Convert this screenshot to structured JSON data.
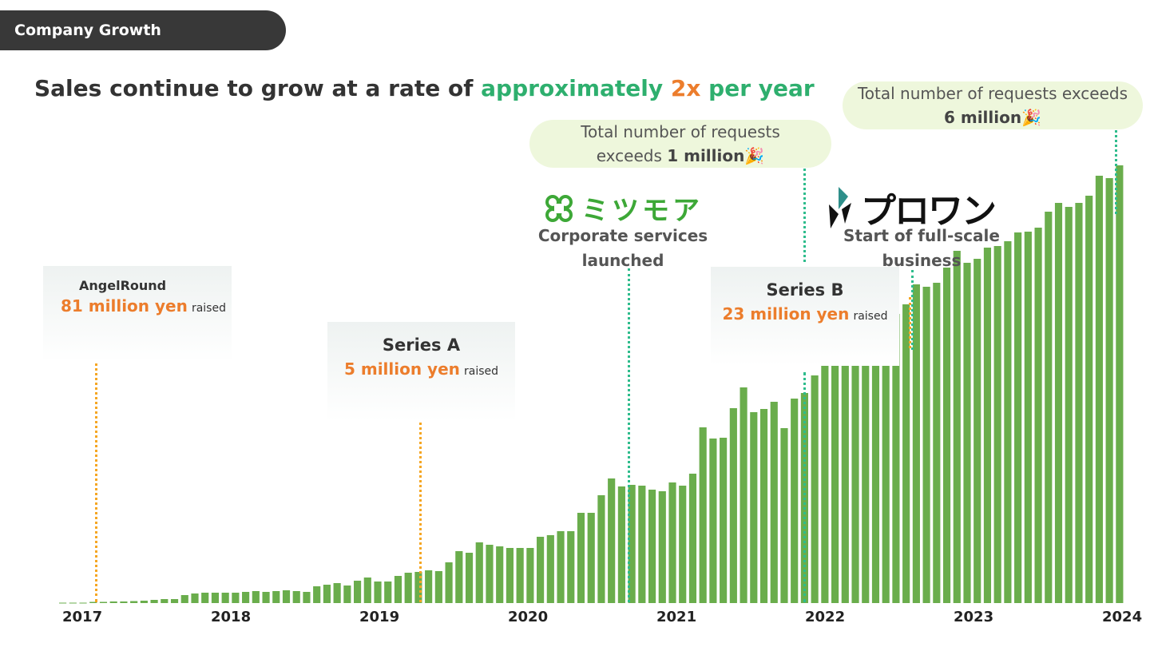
{
  "header": {
    "tab_label": "Company Growth"
  },
  "headline": {
    "part1": "Sales continue to grow at a rate of ",
    "part2": "approximately ",
    "part3": "2x",
    "part4": " per year"
  },
  "colors": {
    "bar": "#6aad4c",
    "accent_orange": "#ec7d2c",
    "accent_green": "#2eaf6e",
    "dark": "#383838"
  },
  "milestones": {
    "requests_1m": {
      "line1": "Total number of requests",
      "line2_pre": "exceeds ",
      "line2_bold": "1 million",
      "emoji": "🎉"
    },
    "requests_6m": {
      "line1": "Total number of requests exceeds",
      "line2_bold": "6 million",
      "emoji": "🎉"
    },
    "mitsumore": {
      "logo_text": "ミツモア",
      "icon": "clover-icon",
      "caption1": "Corporate services",
      "caption2": "launched"
    },
    "prowan": {
      "logo_text": "プロワン",
      "icon": "prowan-mark-icon",
      "caption1": "Start of full-scale",
      "caption2": "business"
    }
  },
  "funding": {
    "angel": {
      "name": "AngelRound",
      "amount": "81 million yen",
      "suffix": "raised"
    },
    "series_a": {
      "name": "Series A",
      "amount": "5 million yen",
      "suffix": "raised"
    },
    "series_b": {
      "name": "Series B",
      "amount": "23 million yen",
      "suffix": "raised"
    }
  },
  "chart_data": {
    "type": "bar",
    "title": "",
    "xlabel": "",
    "ylabel": "",
    "x_ticks": [
      "2017",
      "2018",
      "2019",
      "2020",
      "2021",
      "2022",
      "2023",
      "2024"
    ],
    "y_axis_visible": false,
    "grid": false,
    "series": [
      {
        "name": "",
        "values": [
          0.5,
          0.5,
          0.5,
          1.5,
          1.5,
          2,
          2,
          2.5,
          3,
          4,
          5,
          5,
          10,
          12,
          13,
          13,
          13,
          13,
          14,
          15,
          14,
          15,
          16,
          15,
          14,
          21,
          23,
          25,
          22,
          28,
          32,
          27,
          27,
          34,
          38,
          39,
          41,
          40,
          51,
          65,
          63,
          76,
          73,
          71,
          69,
          69,
          69,
          83,
          85,
          90,
          90,
          113,
          113,
          135,
          156,
          146,
          148,
          147,
          142,
          140,
          151,
          147,
          162,
          220,
          206,
          207,
          244,
          270,
          239,
          243,
          252,
          219,
          256,
          263,
          285,
          339,
          312,
          328,
          353,
          351,
          349,
          356,
          362,
          374,
          399,
          396,
          401,
          420,
          441,
          426,
          431,
          445,
          447,
          453,
          464,
          465,
          470,
          490,
          501,
          496,
          501,
          510,
          535,
          532,
          548
        ]
      }
    ]
  }
}
